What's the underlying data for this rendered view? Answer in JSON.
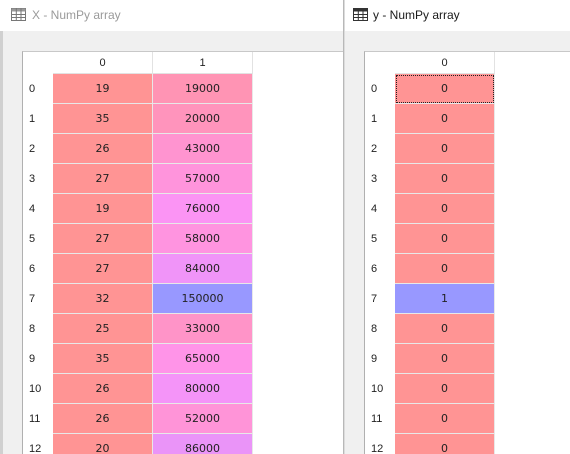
{
  "windows": {
    "x": {
      "title": "X - NumPy array",
      "columns": [
        "0",
        "1"
      ],
      "index": [
        "0",
        "1",
        "2",
        "3",
        "4",
        "5",
        "6",
        "7",
        "8",
        "9",
        "10",
        "11",
        "12"
      ],
      "rows": [
        [
          "19",
          "19000"
        ],
        [
          "35",
          "20000"
        ],
        [
          "26",
          "43000"
        ],
        [
          "27",
          "57000"
        ],
        [
          "19",
          "76000"
        ],
        [
          "27",
          "58000"
        ],
        [
          "27",
          "84000"
        ],
        [
          "32",
          "150000"
        ],
        [
          "25",
          "33000"
        ],
        [
          "35",
          "65000"
        ],
        [
          "26",
          "80000"
        ],
        [
          "26",
          "52000"
        ],
        [
          "20",
          "86000"
        ]
      ],
      "colors": [
        [
          "#ff9494",
          "#ff94b4"
        ],
        [
          "#ff9494",
          "#ff94bc"
        ],
        [
          "#ff9494",
          "#ff94d0"
        ],
        [
          "#ff9494",
          "#ff94dc"
        ],
        [
          "#ff9494",
          "#fb94f4"
        ],
        [
          "#ff9494",
          "#ff94e0"
        ],
        [
          "#ff9494",
          "#f094f8"
        ],
        [
          "#ff9494",
          "#9898ff"
        ],
        [
          "#ff9494",
          "#ff94c8"
        ],
        [
          "#ff9494",
          "#ff94e8"
        ],
        [
          "#ff9494",
          "#f494f8"
        ],
        [
          "#ff9494",
          "#ff94d8"
        ],
        [
          "#ff9494",
          "#ea94f8"
        ]
      ]
    },
    "y": {
      "title": "y - NumPy array",
      "columns": [
        "0"
      ],
      "index": [
        "0",
        "1",
        "2",
        "3",
        "4",
        "5",
        "6",
        "7",
        "8",
        "9",
        "10",
        "11",
        "12"
      ],
      "rows": [
        [
          "0"
        ],
        [
          "0"
        ],
        [
          "0"
        ],
        [
          "0"
        ],
        [
          "0"
        ],
        [
          "0"
        ],
        [
          "0"
        ],
        [
          "1"
        ],
        [
          "0"
        ],
        [
          "0"
        ],
        [
          "0"
        ],
        [
          "0"
        ],
        [
          "0"
        ]
      ],
      "colors": [
        [
          "#ff9494"
        ],
        [
          "#ff9494"
        ],
        [
          "#ff9494"
        ],
        [
          "#ff9494"
        ],
        [
          "#ff9494"
        ],
        [
          "#ff9494"
        ],
        [
          "#ff9494"
        ],
        [
          "#9898ff"
        ],
        [
          "#ff9494"
        ],
        [
          "#ff9494"
        ],
        [
          "#ff9494"
        ],
        [
          "#ff9494"
        ],
        [
          "#ff9494"
        ]
      ],
      "selected_row": 0
    }
  },
  "icons": {
    "window": "table-grid-icon"
  }
}
